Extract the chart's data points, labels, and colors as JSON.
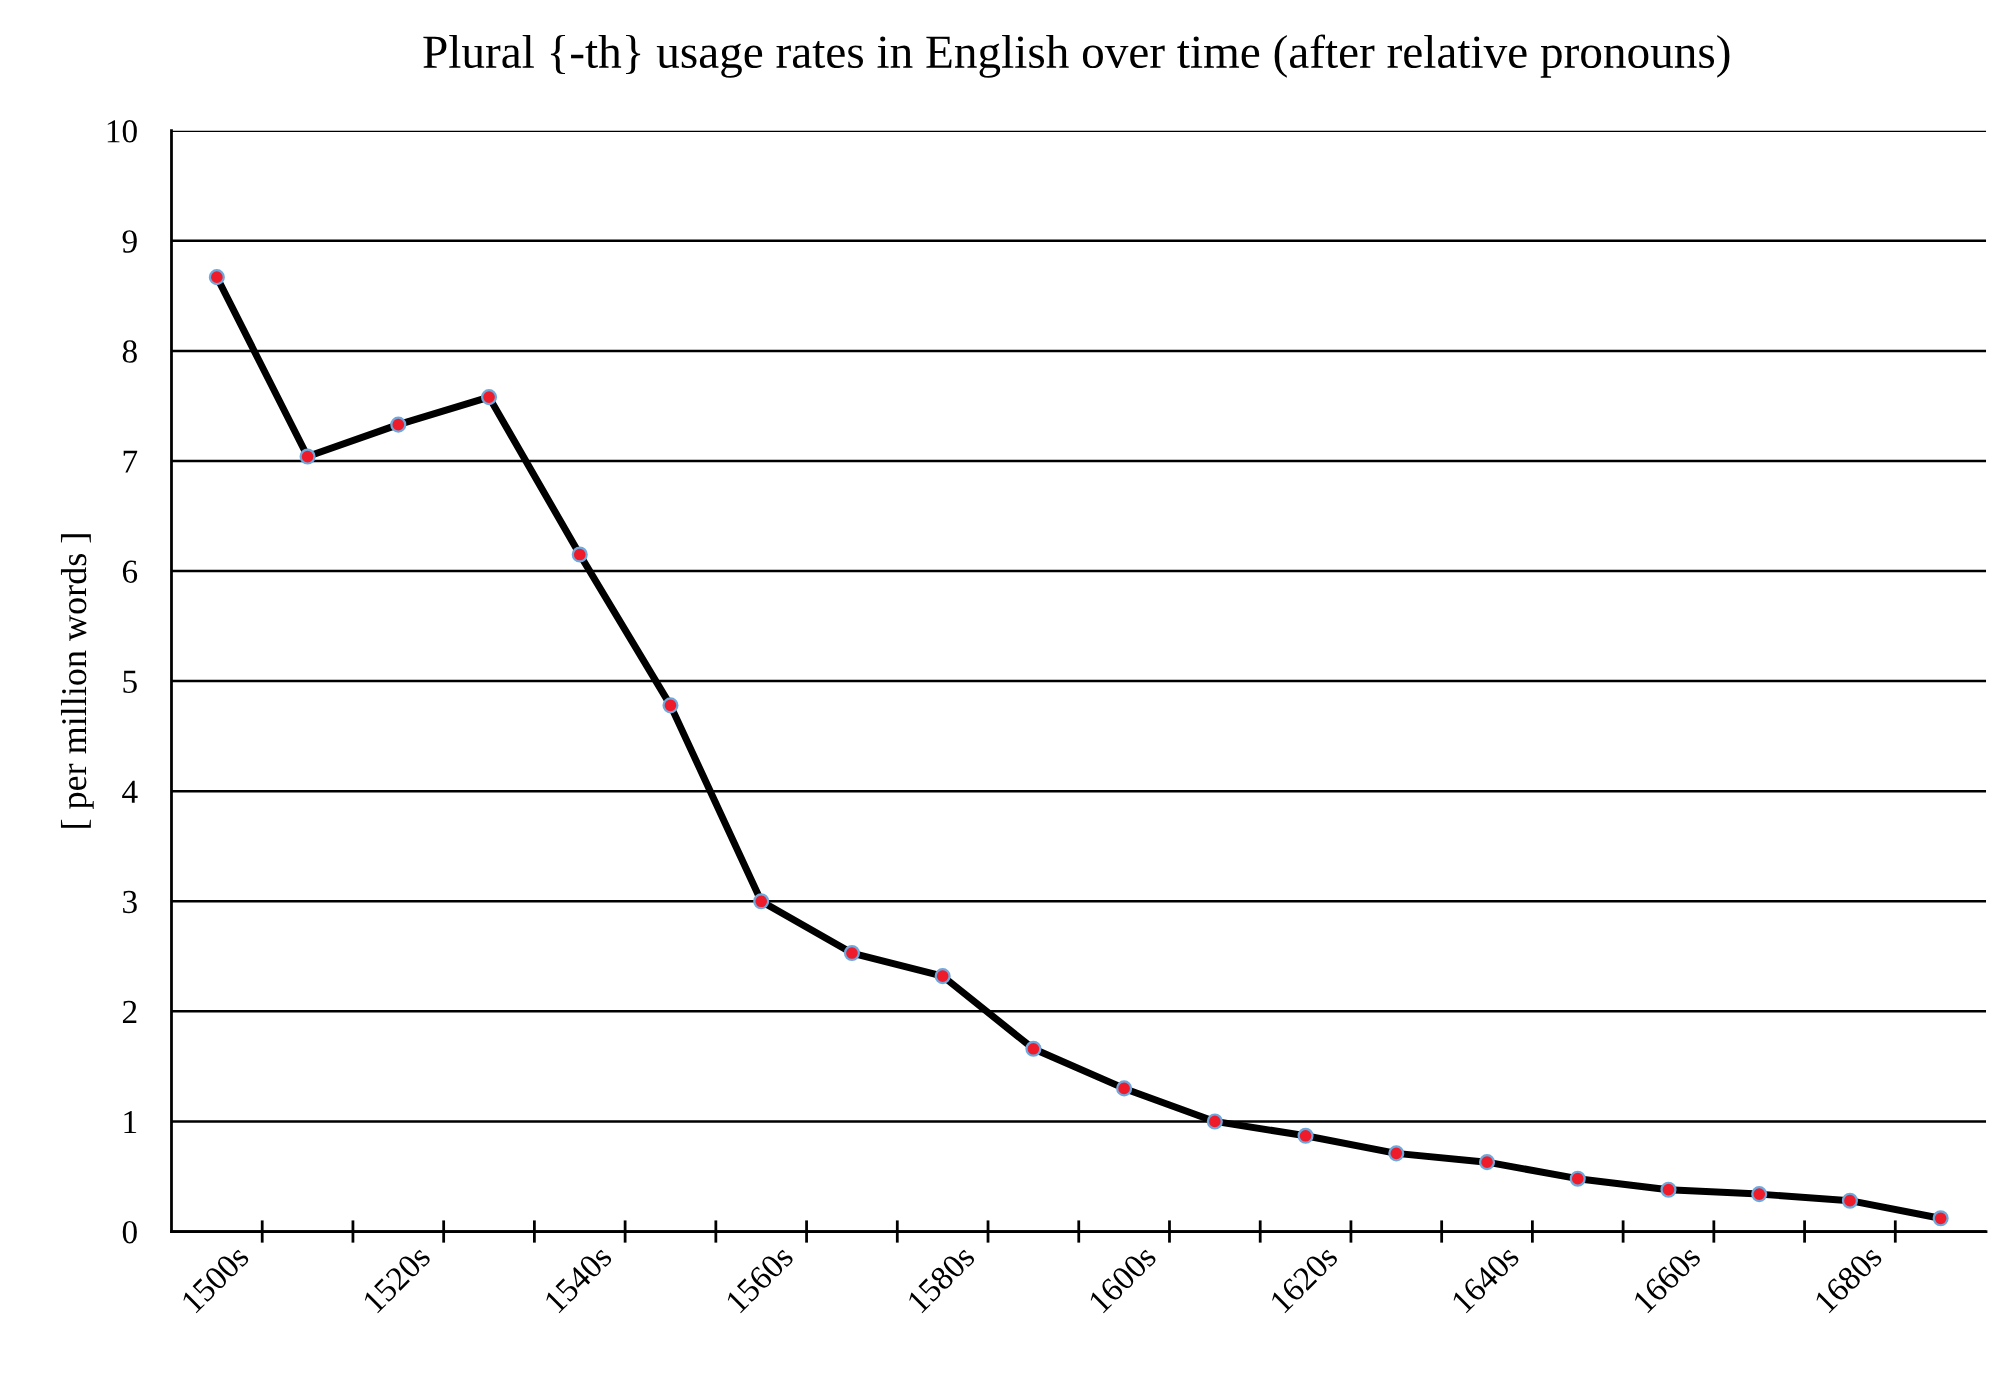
{
  "chart_data": {
    "type": "line",
    "title": "Plural {-th} usage rates in English over time (after relative pronouns)",
    "ylabel": "[ per million words ]",
    "categories": [
      "1500s",
      null,
      "1520s",
      null,
      "1540s",
      null,
      "1560s",
      null,
      "1580s",
      null,
      "1600s",
      null,
      "1620s",
      null,
      "1640s",
      null,
      "1660s",
      null,
      "1680s",
      null
    ],
    "series": [
      {
        "color": "#000000",
        "values": [
          8.67,
          7.04,
          7.33,
          7.58,
          6.15,
          4.78,
          3.0,
          2.53,
          2.32,
          1.66,
          1.3,
          1.0,
          0.87,
          0.71,
          0.63,
          0.48,
          0.38,
          0.34,
          0.28,
          0.12
        ]
      }
    ],
    "ylim": [
      0,
      10
    ],
    "yticks": [
      0,
      1,
      2,
      3,
      4,
      5,
      6,
      7,
      8,
      9,
      10
    ],
    "grid": "y",
    "marker": "circle",
    "line_style": "solid",
    "legend": false
  }
}
